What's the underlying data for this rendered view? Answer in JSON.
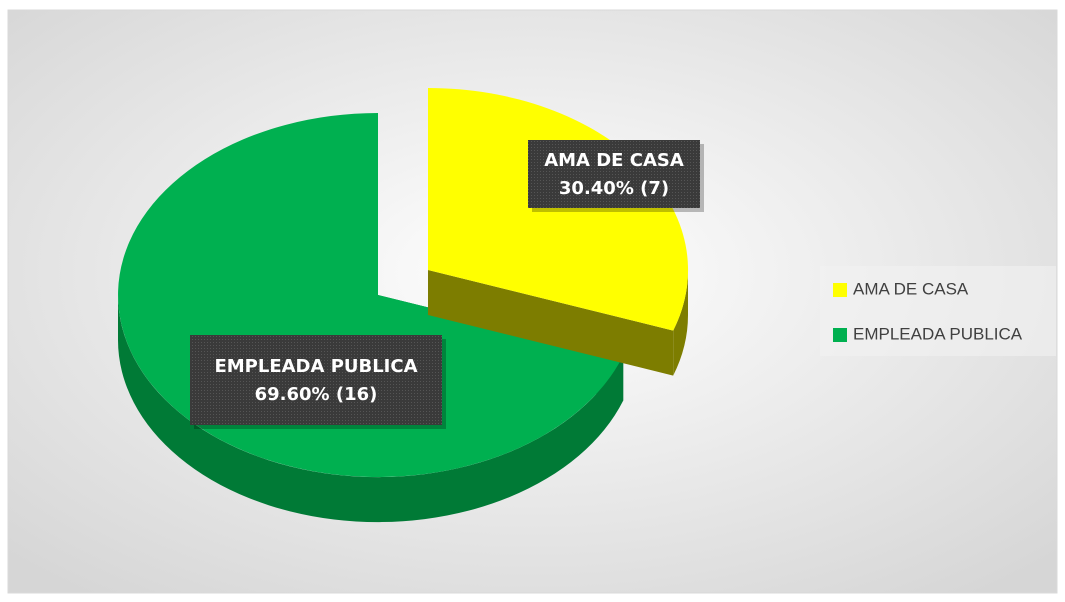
{
  "chart_data": {
    "type": "pie3d",
    "categories": [
      "AMA DE CASA",
      "EMPLEADA PUBLICA"
    ],
    "values": [
      30.4,
      69.6
    ],
    "value_labels": [
      "30.40% (7)",
      "69.60% (16)"
    ],
    "colors": [
      "#ffff00",
      "#00b050"
    ],
    "side_colors": [
      "#7d7d00",
      "#007a36"
    ],
    "exploded": [
      true,
      false
    ],
    "legend": "right"
  }
}
